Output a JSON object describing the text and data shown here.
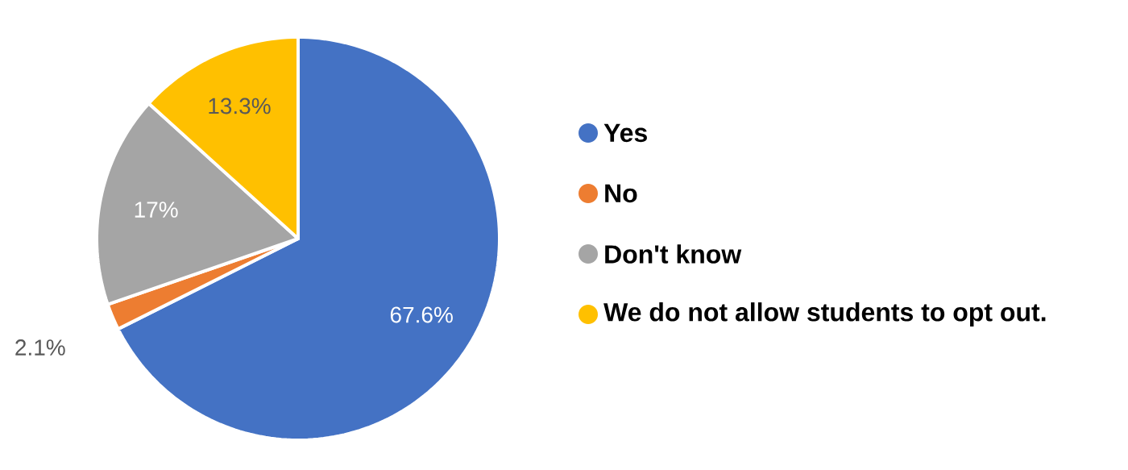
{
  "chart_data": {
    "type": "pie",
    "categories": [
      "Yes",
      "No",
      "Don't know",
      "We do not allow students to opt out."
    ],
    "values": [
      67.6,
      2.1,
      17,
      13.3
    ],
    "colors": [
      "#4472c4",
      "#ed7d31",
      "#a5a5a5",
      "#ffc000"
    ],
    "value_labels": [
      "67.6%",
      "2.1%",
      "17%",
      "13.3%"
    ],
    "legend": "right"
  }
}
